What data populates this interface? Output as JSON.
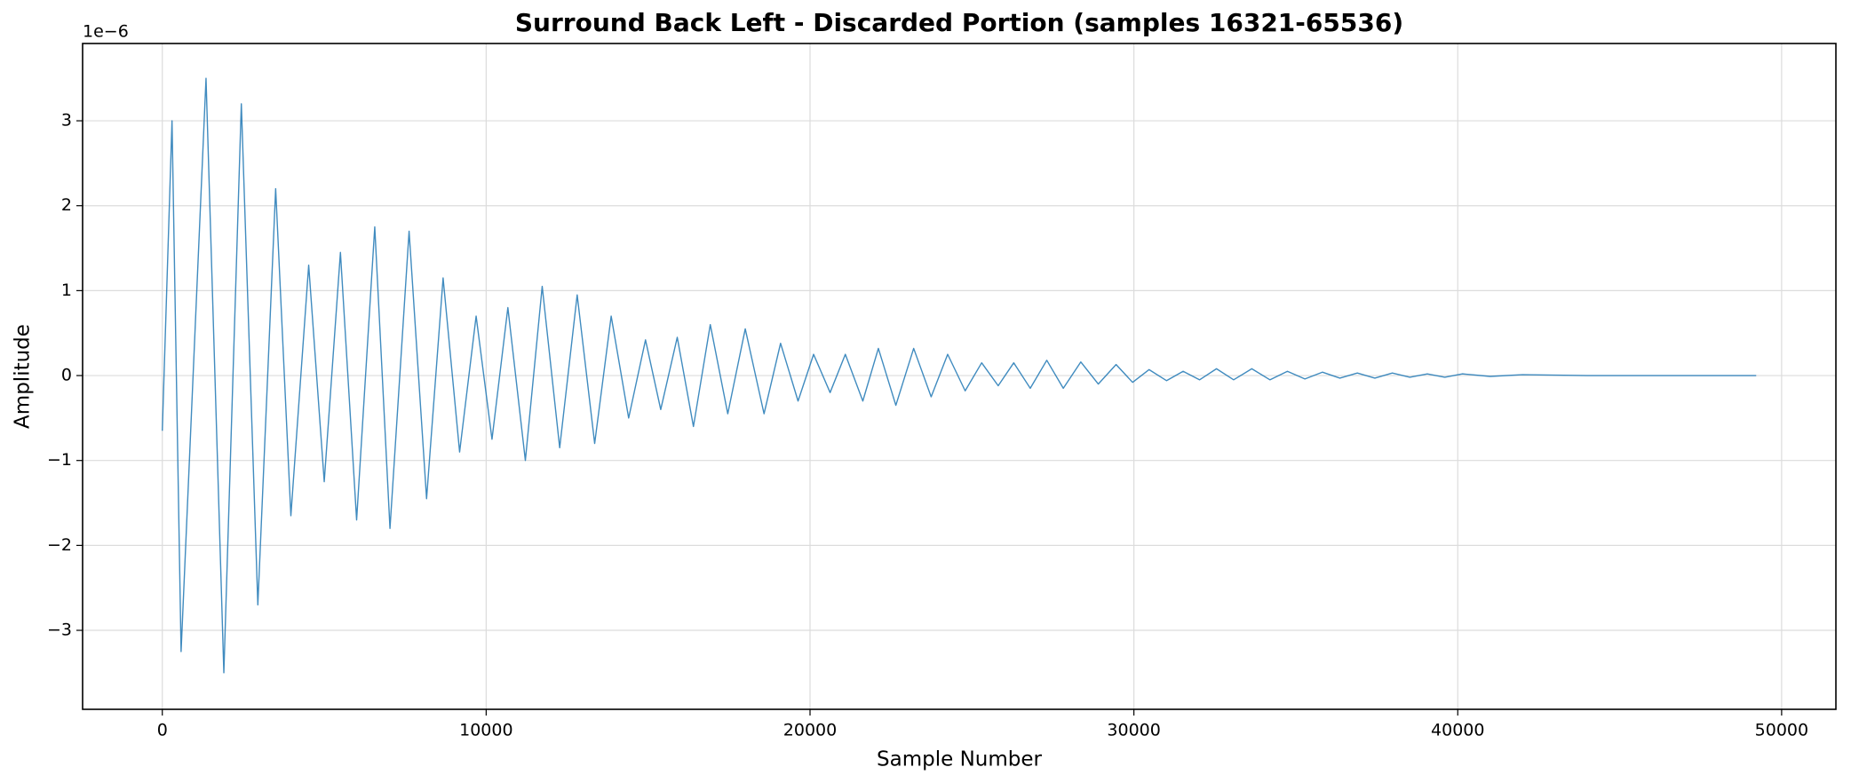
{
  "chart_data": {
    "type": "line",
    "title": "Surround Back Left - Discarded Portion (samples 16321-65536)",
    "xlabel": "Sample Number",
    "ylabel": "Amplitude",
    "y_offset_label": "1e−6",
    "color": "#1f77b4",
    "grid": true,
    "xlim": [
      -2461,
      51676
    ],
    "ylim": [
      -3.93,
      3.91
    ],
    "xticks": [
      0,
      10000,
      20000,
      30000,
      40000,
      50000
    ],
    "yticks": [
      {
        "value": -3,
        "label": "−3"
      },
      {
        "value": -2,
        "label": "−2"
      },
      {
        "value": -1,
        "label": "−1"
      },
      0,
      1,
      2,
      3
    ],
    "x": [
      0,
      300,
      580,
      1350,
      1900,
      2440,
      2950,
      3500,
      3970,
      4520,
      5000,
      5500,
      6000,
      6560,
      7030,
      7620,
      8160,
      8670,
      9180,
      9690,
      10180,
      10670,
      11210,
      11730,
      12270,
      12810,
      13350,
      13860,
      14400,
      14920,
      15390,
      15900,
      16400,
      16920,
      17460,
      18000,
      18580,
      19090,
      19630,
      20110,
      20620,
      21090,
      21630,
      22110,
      22650,
      23200,
      23740,
      24250,
      24790,
      25300,
      25810,
      26290,
      26800,
      27310,
      27820,
      28360,
      28900,
      29450,
      29960,
      30470,
      31010,
      31520,
      32030,
      32550,
      33080,
      33640,
      34200,
      34740,
      35280,
      35820,
      36360,
      36900,
      37440,
      37980,
      38520,
      39060,
      39600,
      40140,
      41000,
      42000,
      44000,
      49215
    ],
    "values": [
      -0.65,
      3.0,
      -3.25,
      3.5,
      -3.5,
      3.2,
      -2.7,
      2.2,
      -1.65,
      1.3,
      -1.25,
      1.45,
      -1.7,
      1.75,
      -1.8,
      1.7,
      -1.45,
      1.15,
      -0.9,
      0.7,
      -0.75,
      0.8,
      -1.0,
      1.05,
      -0.85,
      0.95,
      -0.8,
      0.7,
      -0.5,
      0.42,
      -0.4,
      0.45,
      -0.6,
      0.6,
      -0.45,
      0.55,
      -0.45,
      0.38,
      -0.3,
      0.25,
      -0.2,
      0.25,
      -0.3,
      0.32,
      -0.35,
      0.32,
      -0.25,
      0.25,
      -0.18,
      0.15,
      -0.12,
      0.15,
      -0.15,
      0.18,
      -0.15,
      0.16,
      -0.1,
      0.13,
      -0.08,
      0.07,
      -0.06,
      0.05,
      -0.05,
      0.08,
      -0.05,
      0.08,
      -0.05,
      0.05,
      -0.04,
      0.04,
      -0.03,
      0.03,
      -0.03,
      0.03,
      -0.02,
      0.02,
      -0.02,
      0.02,
      -0.01,
      0.01,
      0,
      0
    ]
  }
}
